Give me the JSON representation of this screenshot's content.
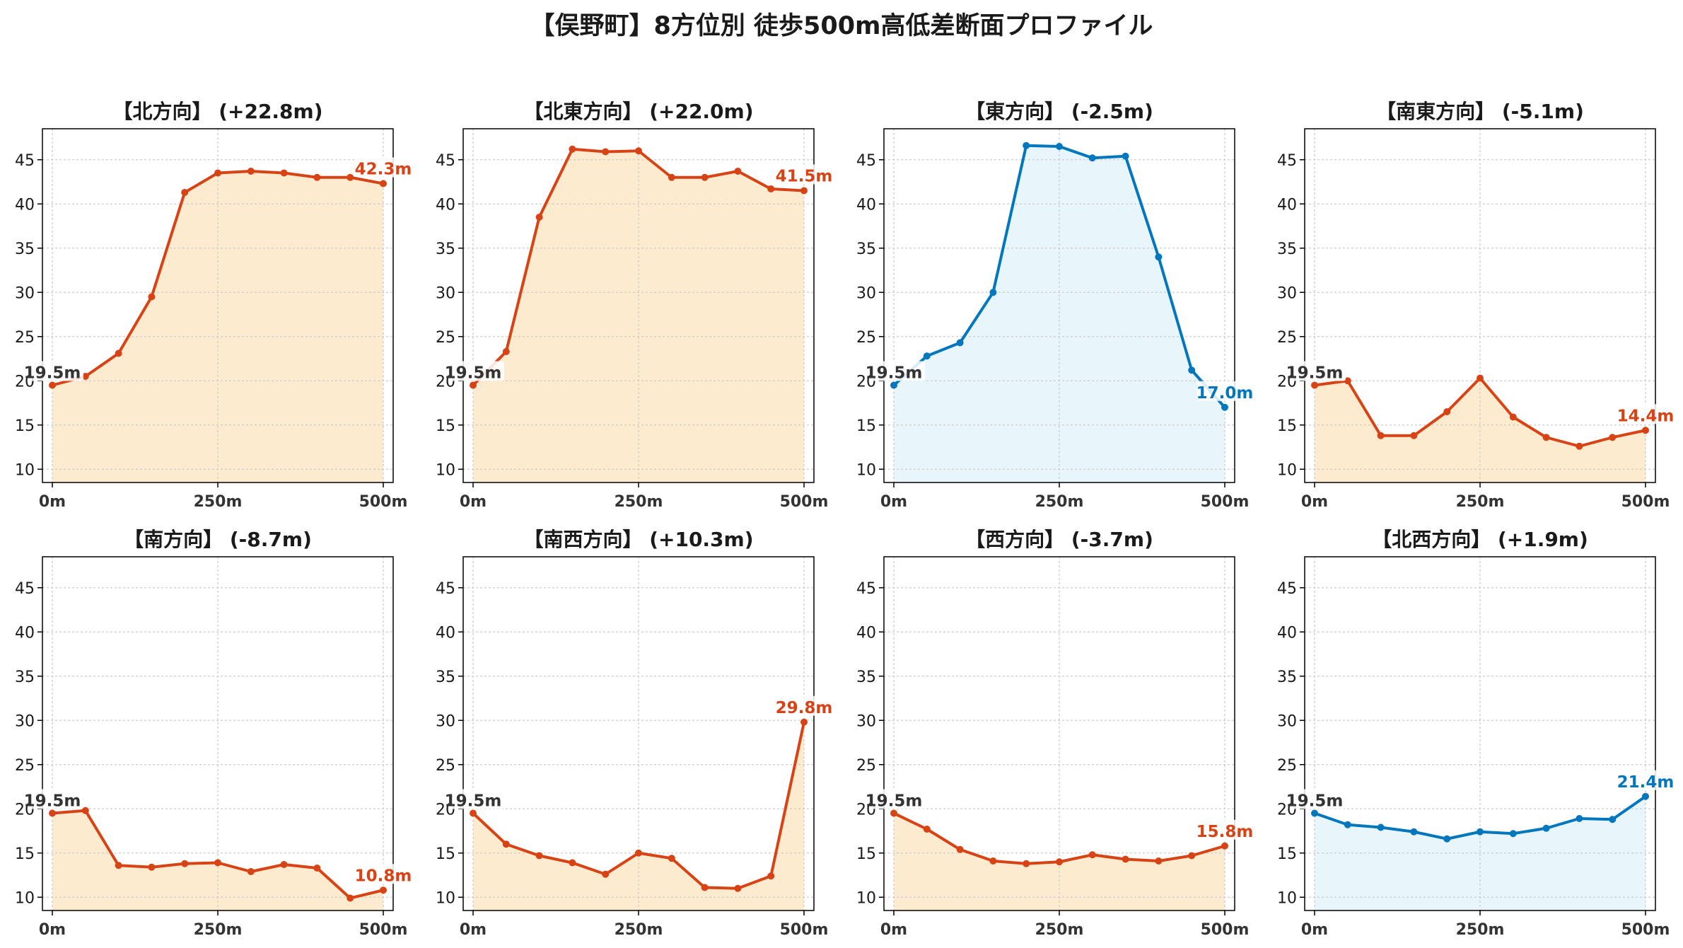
{
  "figure_title": "【俣野町】8方位別 徒歩500m高低差断面プロファイル",
  "colors": {
    "up": "#d84315",
    "up_fill": "#fdebd0",
    "down": "#0277bd",
    "down_fill": "#e8f6fb",
    "start_label": "#333333"
  },
  "chart_data": [
    {
      "type": "area",
      "title": "【北方向】 (+22.8m)",
      "color": "up",
      "x": [
        0,
        50,
        100,
        150,
        200,
        250,
        300,
        350,
        400,
        450,
        500
      ],
      "y": [
        19.5,
        20.5,
        23.1,
        29.5,
        41.3,
        43.5,
        43.7,
        43.5,
        43.0,
        43.0,
        42.3
      ],
      "start_label": "19.5m",
      "end_label": "42.3m",
      "ylim": [
        8.5,
        48.5
      ],
      "yticks": [
        "10",
        "15",
        "20",
        "25",
        "30",
        "35",
        "40",
        "45"
      ],
      "xticks": [
        "0m",
        "250m",
        "500m"
      ],
      "grid": true
    },
    {
      "type": "area",
      "title": "【北東方向】 (+22.0m)",
      "color": "up",
      "x": [
        0,
        50,
        100,
        150,
        200,
        250,
        300,
        350,
        400,
        450,
        500
      ],
      "y": [
        19.5,
        23.3,
        38.5,
        46.2,
        45.9,
        46.0,
        43.0,
        43.0,
        43.7,
        41.7,
        41.5
      ],
      "start_label": "19.5m",
      "end_label": "41.5m",
      "ylim": [
        8.5,
        48.5
      ],
      "yticks": [
        "10",
        "15",
        "20",
        "25",
        "30",
        "35",
        "40",
        "45"
      ],
      "xticks": [
        "0m",
        "250m",
        "500m"
      ],
      "grid": true
    },
    {
      "type": "area",
      "title": "【東方向】 (-2.5m)",
      "color": "down",
      "x": [
        0,
        50,
        100,
        150,
        200,
        250,
        300,
        350,
        400,
        450,
        500
      ],
      "y": [
        19.5,
        22.8,
        24.3,
        30.0,
        46.6,
        46.5,
        45.2,
        45.4,
        34.0,
        21.2,
        17.0
      ],
      "start_label": "19.5m",
      "end_label": "17.0m",
      "ylim": [
        8.5,
        48.5
      ],
      "yticks": [
        "10",
        "15",
        "20",
        "25",
        "30",
        "35",
        "40",
        "45"
      ],
      "xticks": [
        "0m",
        "250m",
        "500m"
      ],
      "grid": true
    },
    {
      "type": "area",
      "title": "【南東方向】 (-5.1m)",
      "color": "up",
      "x": [
        0,
        50,
        100,
        150,
        200,
        250,
        300,
        350,
        400,
        450,
        500
      ],
      "y": [
        19.5,
        20.0,
        13.8,
        13.8,
        16.5,
        20.3,
        15.9,
        13.6,
        12.6,
        13.6,
        14.4
      ],
      "start_label": "19.5m",
      "end_label": "14.4m",
      "ylim": [
        8.5,
        48.5
      ],
      "yticks": [
        "10",
        "15",
        "20",
        "25",
        "30",
        "35",
        "40",
        "45"
      ],
      "xticks": [
        "0m",
        "250m",
        "500m"
      ],
      "grid": true
    },
    {
      "type": "area",
      "title": "【南方向】 (-8.7m)",
      "color": "up",
      "x": [
        0,
        50,
        100,
        150,
        200,
        250,
        300,
        350,
        400,
        450,
        500
      ],
      "y": [
        19.5,
        19.8,
        13.6,
        13.4,
        13.8,
        13.9,
        12.9,
        13.7,
        13.3,
        9.9,
        10.8
      ],
      "start_label": "19.5m",
      "end_label": "10.8m",
      "ylim": [
        8.5,
        48.5
      ],
      "yticks": [
        "10",
        "15",
        "20",
        "25",
        "30",
        "35",
        "40",
        "45"
      ],
      "xticks": [
        "0m",
        "250m",
        "500m"
      ],
      "grid": true
    },
    {
      "type": "area",
      "title": "【南西方向】 (+10.3m)",
      "color": "up",
      "x": [
        0,
        50,
        100,
        150,
        200,
        250,
        300,
        350,
        400,
        450,
        500
      ],
      "y": [
        19.5,
        16.0,
        14.7,
        13.9,
        12.6,
        15.0,
        14.4,
        11.1,
        11.0,
        12.4,
        29.8
      ],
      "start_label": "19.5m",
      "end_label": "29.8m",
      "ylim": [
        8.5,
        48.5
      ],
      "yticks": [
        "10",
        "15",
        "20",
        "25",
        "30",
        "35",
        "40",
        "45"
      ],
      "xticks": [
        "0m",
        "250m",
        "500m"
      ],
      "grid": true
    },
    {
      "type": "area",
      "title": "【西方向】 (-3.7m)",
      "color": "up",
      "x": [
        0,
        50,
        100,
        150,
        200,
        250,
        300,
        350,
        400,
        450,
        500
      ],
      "y": [
        19.5,
        17.7,
        15.4,
        14.1,
        13.8,
        14.0,
        14.8,
        14.3,
        14.1,
        14.7,
        15.8
      ],
      "start_label": "19.5m",
      "end_label": "15.8m",
      "ylim": [
        8.5,
        48.5
      ],
      "yticks": [
        "10",
        "15",
        "20",
        "25",
        "30",
        "35",
        "40",
        "45"
      ],
      "xticks": [
        "0m",
        "250m",
        "500m"
      ],
      "grid": true
    },
    {
      "type": "area",
      "title": "【北西方向】 (+1.9m)",
      "color": "down",
      "x": [
        0,
        50,
        100,
        150,
        200,
        250,
        300,
        350,
        400,
        450,
        500
      ],
      "y": [
        19.5,
        18.2,
        17.9,
        17.4,
        16.6,
        17.4,
        17.2,
        17.8,
        18.9,
        18.8,
        21.4
      ],
      "start_label": "19.5m",
      "end_label": "21.4m",
      "ylim": [
        8.5,
        48.5
      ],
      "yticks": [
        "10",
        "15",
        "20",
        "25",
        "30",
        "35",
        "40",
        "45"
      ],
      "xticks": [
        "0m",
        "250m",
        "500m"
      ],
      "grid": true
    }
  ]
}
